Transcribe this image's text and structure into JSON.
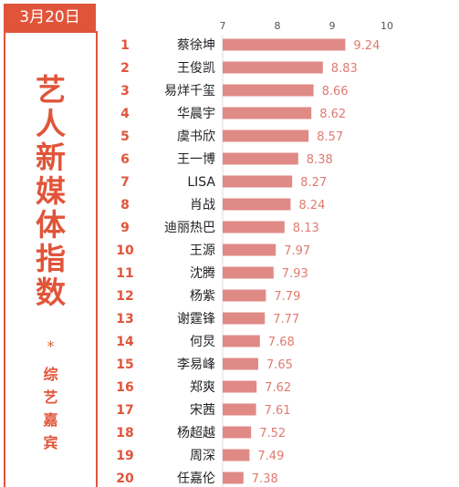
{
  "date_label": "3月20日",
  "side_title": [
    "艺",
    "人",
    "新",
    "媒",
    "体",
    "指",
    "数"
  ],
  "side_star": "*",
  "side_subtitle": [
    "综",
    "艺",
    "嘉",
    "宾"
  ],
  "colors": {
    "accent": "#e0553a",
    "bar": "#e08a86",
    "value_text": "#e07a70",
    "rank_text": "#e0553a",
    "axis_tick": "#555555"
  },
  "chart_data": {
    "type": "bar",
    "orientation": "horizontal",
    "xlim": [
      7,
      10
    ],
    "x_ticks": [
      7,
      8,
      9,
      10
    ],
    "ranks": [
      "1",
      "2",
      "3",
      "4",
      "5",
      "6",
      "7",
      "8",
      "9",
      "10",
      "11",
      "12",
      "13",
      "14",
      "15",
      "16",
      "17",
      "18",
      "19",
      "20"
    ],
    "categories": [
      "蔡徐坤",
      "王俊凯",
      "易烊千玺",
      "华晨宇",
      "虞书欣",
      "王一博",
      "LISA",
      "肖战",
      "迪丽热巴",
      "王源",
      "沈腾",
      "杨紫",
      "谢霆锋",
      "何炅",
      "李易峰",
      "郑爽",
      "宋茜",
      "杨超越",
      "周深",
      "任嘉伦"
    ],
    "values": [
      9.24,
      8.83,
      8.66,
      8.62,
      8.57,
      8.38,
      8.27,
      8.24,
      8.13,
      7.97,
      7.93,
      7.79,
      7.77,
      7.68,
      7.65,
      7.62,
      7.61,
      7.52,
      7.49,
      7.38
    ],
    "value_labels": [
      "9.24",
      "8.83",
      "8.66",
      "8.62",
      "8.57",
      "8.38",
      "8.27",
      "8.24",
      "8.13",
      "7.97",
      "7.93",
      "7.79",
      "7.77",
      "7.68",
      "7.65",
      "7.62",
      "7.61",
      "7.52",
      "7.49",
      "7.38"
    ]
  }
}
